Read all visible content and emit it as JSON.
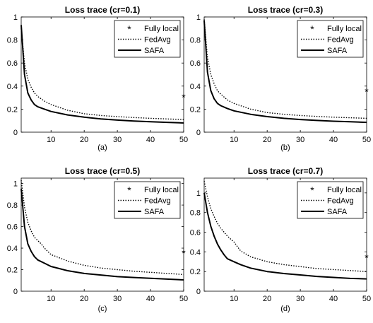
{
  "chart_data": [
    {
      "type": "line",
      "title": "Loss trace (cr=0.1)",
      "caption": "(a)",
      "xlim": [
        1,
        50
      ],
      "ylim": [
        0,
        1
      ],
      "xticks": [
        10,
        20,
        30,
        40,
        50
      ],
      "yticks": [
        0,
        0.2,
        0.4,
        0.6,
        0.8,
        1
      ],
      "legend_position": "top-right",
      "series": [
        {
          "name": "Fully local",
          "style": "star",
          "x": [
            50
          ],
          "values": [
            0.31
          ]
        },
        {
          "name": "FedAvg",
          "style": "dotted",
          "x": [
            1,
            2,
            3,
            4,
            5,
            6,
            8,
            10,
            15,
            20,
            25,
            30,
            35,
            40,
            45,
            50
          ],
          "values": [
            0.9,
            0.6,
            0.46,
            0.39,
            0.34,
            0.31,
            0.27,
            0.24,
            0.19,
            0.16,
            0.145,
            0.135,
            0.127,
            0.12,
            0.115,
            0.11
          ]
        },
        {
          "name": "SAFA",
          "style": "solid",
          "x": [
            1,
            2,
            3,
            4,
            5,
            6,
            8,
            10,
            15,
            20,
            25,
            30,
            35,
            40,
            45,
            50
          ],
          "values": [
            0.93,
            0.5,
            0.34,
            0.28,
            0.24,
            0.22,
            0.2,
            0.18,
            0.15,
            0.13,
            0.115,
            0.105,
            0.097,
            0.09,
            0.085,
            0.08
          ]
        }
      ]
    },
    {
      "type": "line",
      "title": "Loss trace (cr=0.3)",
      "caption": "(b)",
      "xlim": [
        1,
        50
      ],
      "ylim": [
        0,
        1
      ],
      "xticks": [
        10,
        20,
        30,
        40,
        50
      ],
      "yticks": [
        0,
        0.2,
        0.4,
        0.6,
        0.8,
        1
      ],
      "legend_position": "top-right",
      "series": [
        {
          "name": "Fully local",
          "style": "star",
          "x": [
            50
          ],
          "values": [
            0.36
          ]
        },
        {
          "name": "FedAvg",
          "style": "dotted",
          "x": [
            1,
            2,
            3,
            4,
            5,
            6,
            8,
            10,
            15,
            20,
            25,
            30,
            35,
            40,
            45,
            50
          ],
          "values": [
            0.98,
            0.65,
            0.5,
            0.42,
            0.36,
            0.33,
            0.28,
            0.25,
            0.2,
            0.17,
            0.155,
            0.145,
            0.137,
            0.13,
            0.125,
            0.12
          ]
        },
        {
          "name": "SAFA",
          "style": "solid",
          "x": [
            1,
            2,
            3,
            4,
            5,
            6,
            8,
            10,
            15,
            20,
            25,
            30,
            35,
            40,
            45,
            50
          ],
          "values": [
            0.97,
            0.52,
            0.36,
            0.29,
            0.25,
            0.23,
            0.205,
            0.185,
            0.155,
            0.135,
            0.12,
            0.11,
            0.102,
            0.095,
            0.09,
            0.085
          ]
        }
      ]
    },
    {
      "type": "line",
      "title": "Loss trace (cr=0.5)",
      "caption": "(c)",
      "xlim": [
        1,
        50
      ],
      "ylim": [
        0,
        1.05
      ],
      "xticks": [
        10,
        20,
        30,
        40,
        50
      ],
      "yticks": [
        0,
        0.2,
        0.4,
        0.6,
        0.8,
        1
      ],
      "legend_position": "top-right",
      "series": [
        {
          "name": "Fully local",
          "style": "star",
          "x": [
            50
          ],
          "values": [
            0.36
          ]
        },
        {
          "name": "FedAvg",
          "style": "dotted",
          "x": [
            1,
            2,
            3,
            4,
            5,
            6,
            7,
            8,
            10,
            15,
            20,
            25,
            30,
            35,
            40,
            45,
            50
          ],
          "values": [
            1.03,
            0.78,
            0.64,
            0.56,
            0.5,
            0.47,
            0.44,
            0.4,
            0.34,
            0.28,
            0.24,
            0.215,
            0.2,
            0.185,
            0.175,
            0.165,
            0.155
          ]
        },
        {
          "name": "SAFA",
          "style": "solid",
          "x": [
            1,
            2,
            3,
            4,
            5,
            6,
            8,
            10,
            15,
            20,
            25,
            30,
            35,
            40,
            45,
            50
          ],
          "values": [
            0.95,
            0.6,
            0.44,
            0.37,
            0.32,
            0.29,
            0.26,
            0.23,
            0.19,
            0.165,
            0.15,
            0.135,
            0.127,
            0.12,
            0.112,
            0.105
          ]
        }
      ]
    },
    {
      "type": "line",
      "title": "Loss trace (cr=0.7)",
      "caption": "(d)",
      "xlim": [
        1,
        50
      ],
      "ylim": [
        0,
        1.15
      ],
      "xticks": [
        10,
        20,
        30,
        40,
        50
      ],
      "yticks": [
        0,
        0.2,
        0.4,
        0.6,
        0.8,
        1
      ],
      "legend_position": "top-right",
      "series": [
        {
          "name": "Fully local",
          "style": "star",
          "x": [
            50
          ],
          "values": [
            0.35
          ]
        },
        {
          "name": "FedAvg",
          "style": "dotted",
          "x": [
            1,
            2,
            3,
            4,
            5,
            6,
            7,
            8,
            9,
            10,
            12,
            15,
            20,
            25,
            30,
            35,
            40,
            45,
            50
          ],
          "values": [
            1.12,
            0.96,
            0.84,
            0.76,
            0.69,
            0.64,
            0.6,
            0.56,
            0.53,
            0.5,
            0.41,
            0.35,
            0.3,
            0.27,
            0.25,
            0.23,
            0.22,
            0.21,
            0.2
          ]
        },
        {
          "name": "SAFA",
          "style": "solid",
          "x": [
            1,
            2,
            3,
            4,
            5,
            6,
            7,
            8,
            10,
            12,
            15,
            20,
            25,
            30,
            35,
            40,
            45,
            50
          ],
          "values": [
            1.0,
            0.8,
            0.66,
            0.56,
            0.48,
            0.42,
            0.37,
            0.33,
            0.3,
            0.27,
            0.235,
            0.2,
            0.18,
            0.165,
            0.15,
            0.14,
            0.13,
            0.125
          ]
        }
      ]
    }
  ]
}
